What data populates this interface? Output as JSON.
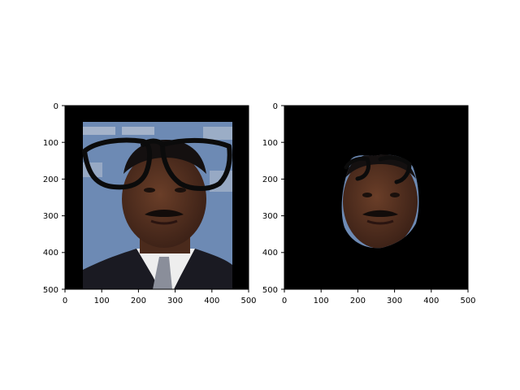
{
  "panels": [
    {
      "id": "left",
      "content": "face with overlaid glasses",
      "x_ticks": [
        "0",
        "100",
        "200",
        "300",
        "400",
        "500"
      ],
      "y_ticks": [
        "0",
        "100",
        "200",
        "300",
        "400",
        "500"
      ]
    },
    {
      "id": "right",
      "content": "masked face with glasses on black background",
      "x_ticks": [
        "0",
        "100",
        "200",
        "300",
        "400",
        "500"
      ],
      "y_ticks": [
        "0",
        "100",
        "200",
        "300",
        "400",
        "500"
      ]
    }
  ],
  "colors": {
    "backdrop_blue": "#6d8ab4",
    "skin": "#4a2a1c",
    "suit": "#1a1a22",
    "shirt": "#eeeeee",
    "tie": "#8a8e9a",
    "glasses": "#0b0b0b",
    "mask": "#000000"
  }
}
